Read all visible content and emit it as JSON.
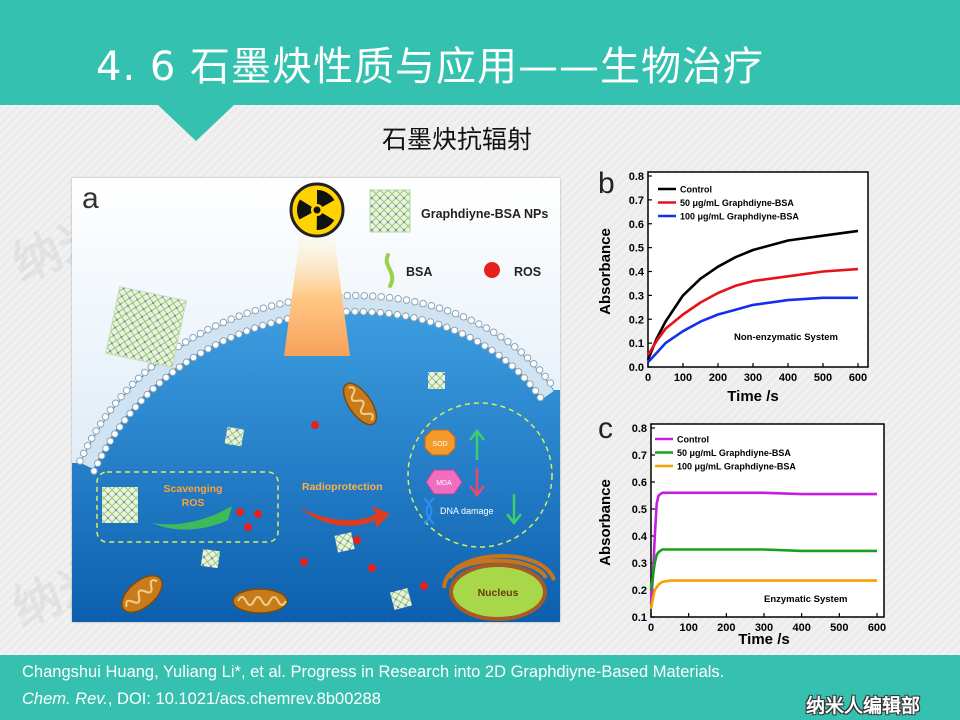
{
  "slide": {
    "title": "4. 6 石墨炔性质与应用——生物治疗",
    "subtitle": "石墨炔抗辐射"
  },
  "watermark": "纳米人",
  "colors": {
    "header": "#35c1b0",
    "footer": "#36c0b0",
    "cell_blue": "#1a78c8"
  },
  "diagram": {
    "panel_label": "a",
    "np_label": "Graphdiyne-BSA NPs",
    "bsa_label": "BSA",
    "ros_label": "ROS",
    "scavenging_line1": "Scavenging",
    "scavenging_line2": "ROS",
    "radioprotection": "Radioprotection",
    "sod": "SOD",
    "mda": "MDA",
    "dna_damage": "DNA damage",
    "nucleus": "Nucleus",
    "icons": [
      "radiation-icon",
      "graphdiyne-nanosheet-icon",
      "bsa-strand-icon",
      "ros-sphere-icon",
      "mitochondrion-icon",
      "nucleus-icon"
    ]
  },
  "chart_data": [
    {
      "panel_label": "b",
      "type": "line",
      "xlabel": "Time /s",
      "ylabel": "Absorbance",
      "xlim": [
        0,
        600
      ],
      "ylim": [
        0,
        0.8
      ],
      "xticks": [
        "0",
        "100",
        "200",
        "300",
        "400",
        "500",
        "600"
      ],
      "yticks": [
        "0.0",
        "0.1",
        "0.2",
        "0.3",
        "0.4",
        "0.5",
        "0.6",
        "0.7",
        "0.8"
      ],
      "annotation": "Non-enzymatic System",
      "legend_position": "top-left",
      "grid": false,
      "series": [
        {
          "name": "Control",
          "color": "#000000",
          "x": [
            0,
            25,
            50,
            100,
            150,
            200,
            250,
            300,
            400,
            500,
            600
          ],
          "y": [
            0.03,
            0.12,
            0.19,
            0.3,
            0.37,
            0.42,
            0.46,
            0.49,
            0.53,
            0.55,
            0.57
          ]
        },
        {
          "name": "50 μg/mL Graphdiyne-BSA",
          "color": "#e8101a",
          "x": [
            0,
            25,
            50,
            100,
            150,
            200,
            250,
            300,
            400,
            500,
            600
          ],
          "y": [
            0.05,
            0.11,
            0.16,
            0.22,
            0.27,
            0.31,
            0.34,
            0.36,
            0.38,
            0.4,
            0.41
          ]
        },
        {
          "name": "100 μg/mL Graphdiyne-BSA",
          "color": "#1530e8",
          "x": [
            0,
            25,
            50,
            100,
            150,
            200,
            250,
            300,
            400,
            500,
            600
          ],
          "y": [
            0.02,
            0.06,
            0.1,
            0.15,
            0.19,
            0.22,
            0.24,
            0.26,
            0.28,
            0.29,
            0.29
          ]
        }
      ]
    },
    {
      "panel_label": "c",
      "type": "line",
      "xlabel": "Time /s",
      "ylabel": "Absorbance",
      "xlim": [
        0,
        600
      ],
      "ylim": [
        0.1,
        0.8
      ],
      "xticks": [
        "0",
        "100",
        "200",
        "300",
        "400",
        "500",
        "600"
      ],
      "yticks": [
        "0.1",
        "0.2",
        "0.3",
        "0.4",
        "0.5",
        "0.6",
        "0.7",
        "0.8"
      ],
      "annotation": "Enzymatic System",
      "legend_position": "top-left",
      "grid": false,
      "series": [
        {
          "name": "Control",
          "color": "#c21fe0",
          "x": [
            0,
            5,
            10,
            15,
            20,
            30,
            50,
            100,
            200,
            300,
            400,
            500,
            600
          ],
          "y": [
            0.15,
            0.25,
            0.4,
            0.52,
            0.55,
            0.56,
            0.56,
            0.56,
            0.56,
            0.56,
            0.555,
            0.555,
            0.555
          ]
        },
        {
          "name": "50 μg/mL Graphdiyne-BSA",
          "color": "#17a01d",
          "x": [
            0,
            5,
            10,
            15,
            20,
            30,
            50,
            100,
            200,
            300,
            400,
            500,
            600
          ],
          "y": [
            0.2,
            0.25,
            0.3,
            0.33,
            0.34,
            0.35,
            0.35,
            0.35,
            0.35,
            0.35,
            0.345,
            0.345,
            0.345
          ]
        },
        {
          "name": "100 μg/mL Graphdiyne-BSA",
          "color": "#f5a200",
          "x": [
            0,
            5,
            10,
            15,
            20,
            30,
            50,
            100,
            200,
            300,
            400,
            500,
            600
          ],
          "y": [
            0.13,
            0.17,
            0.2,
            0.21,
            0.22,
            0.23,
            0.235,
            0.235,
            0.235,
            0.235,
            0.235,
            0.235,
            0.235
          ]
        }
      ]
    }
  ],
  "citation": {
    "line1": "Changshui Huang, Yuliang Li*, et al. Progress in Research into 2D Graphdiyne-Based Materials.",
    "journal": "Chem. Rev.",
    "doi_text": ", DOI: 10.1021/acs.chemrev.8b00288"
  },
  "logo": "纳米人编辑部"
}
